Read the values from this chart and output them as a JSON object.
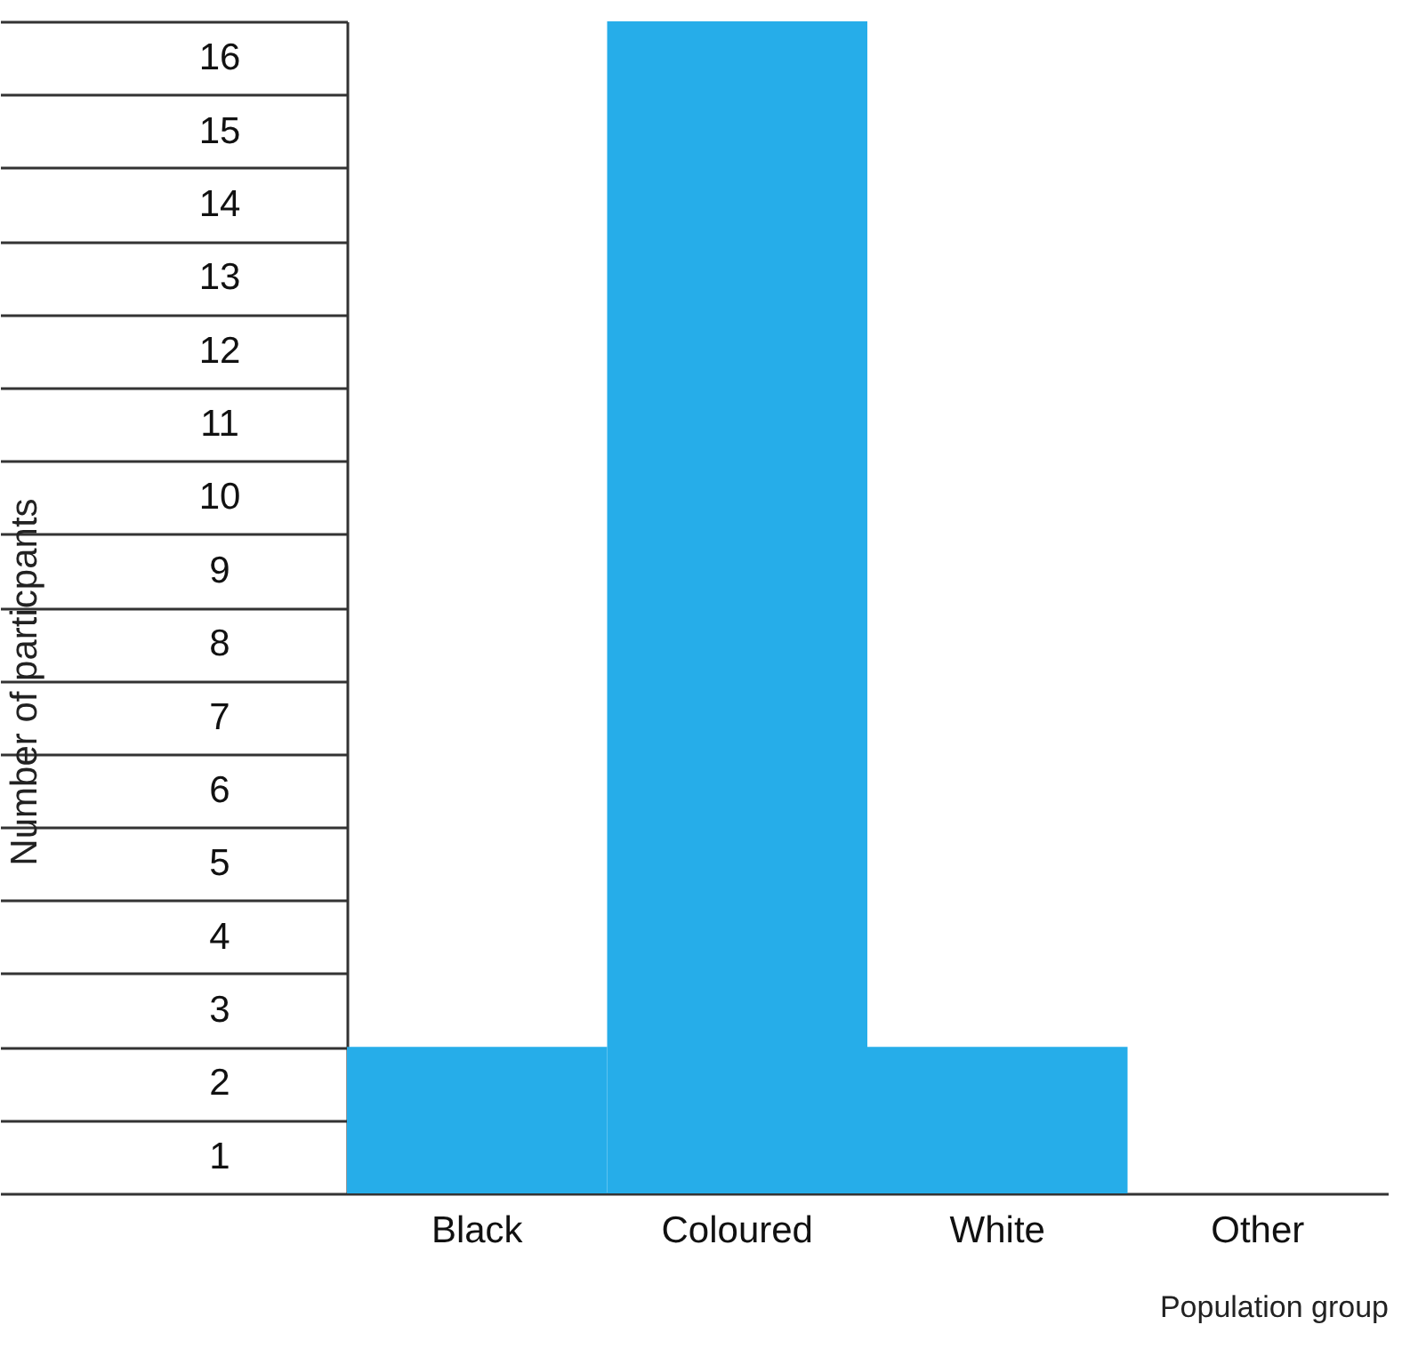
{
  "chart_data": {
    "type": "bar",
    "categories": [
      "Black",
      "Coloured",
      "White",
      "Other"
    ],
    "values": [
      2,
      16,
      2,
      0
    ],
    "color": "#26ade9",
    "xlabel": "Population group",
    "ylabel": "Number of particpants",
    "ylim": [
      0,
      16
    ],
    "yticks": [
      {
        "value": 0,
        "label": null
      },
      1,
      2,
      3,
      4,
      5,
      6,
      7,
      8,
      9,
      10,
      11,
      12,
      13,
      14,
      15,
      16
    ]
  }
}
